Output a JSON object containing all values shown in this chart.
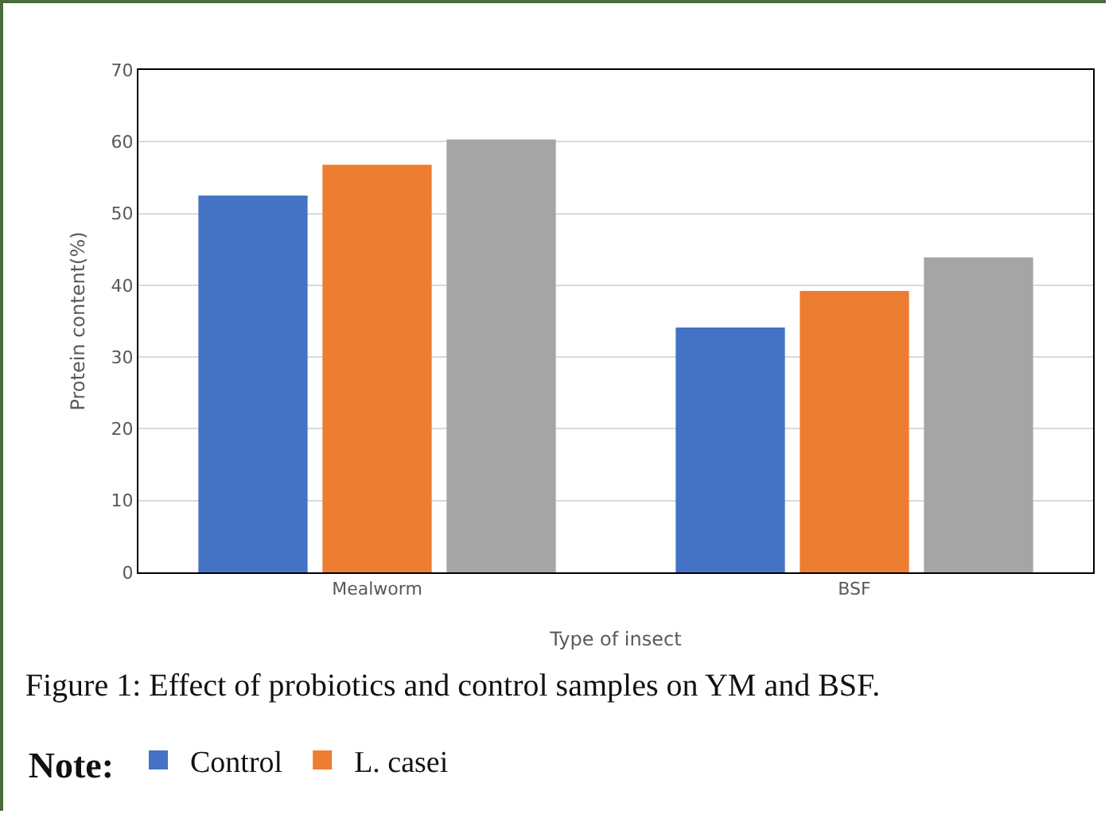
{
  "chart_data": {
    "type": "bar",
    "title": "Figure 1: Effect of probiotics and control samples on YM and BSF.",
    "xlabel": "Type of insect",
    "ylabel": "Protein content(%)",
    "legend_title": "Note:",
    "legend": "bottom",
    "categories": [
      "Mealworm",
      "BSF"
    ],
    "series": [
      {
        "name": "Control",
        "color": "#4472c4",
        "values": [
          52.5,
          34.1
        ]
      },
      {
        "name": "L. casei",
        "color": "#ed7d31",
        "values": [
          56.8,
          39.2
        ]
      },
      {
        "color": "#a5a5a5",
        "values": [
          60.3,
          43.9
        ]
      }
    ],
    "ylim": [
      0,
      70
    ],
    "yticks": [
      0,
      10,
      20,
      30,
      40,
      50,
      60,
      70
    ],
    "grid": "y"
  }
}
